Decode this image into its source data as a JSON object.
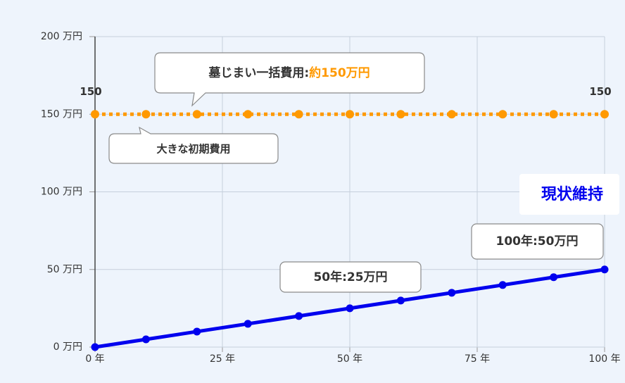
{
  "chart_data": {
    "type": "line",
    "x": [
      0,
      10,
      20,
      30,
      40,
      50,
      60,
      70,
      80,
      90,
      100
    ],
    "xlim": [
      0,
      100
    ],
    "xticks": [
      {
        "value": 0,
        "label": "0 年"
      },
      {
        "value": 25,
        "label": "25 年"
      },
      {
        "value": 50,
        "label": "50 年"
      },
      {
        "value": 75,
        "label": "75 年"
      },
      {
        "value": 100,
        "label": "100 年"
      }
    ],
    "ylim": [
      0,
      200
    ],
    "yticks": [
      {
        "value": 0,
        "label": "0 万円"
      },
      {
        "value": 50,
        "label": "50 万円"
      },
      {
        "value": 100,
        "label": "100 万円"
      },
      {
        "value": 150,
        "label": "150 万円"
      },
      {
        "value": 200,
        "label": "200 万円"
      }
    ],
    "grid": true,
    "series": [
      {
        "name": "大きな初期費用",
        "color": "#ff9900",
        "line_style": "dotted",
        "values": [
          150,
          150,
          150,
          150,
          150,
          150,
          150,
          150,
          150,
          150,
          150
        ],
        "value_labels": [
          "150",
          null,
          null,
          null,
          null,
          null,
          null,
          null,
          null,
          null,
          "150"
        ]
      },
      {
        "name": "現状維持",
        "color": "#0000ee",
        "line_style": "solid",
        "values": [
          0,
          5,
          10,
          15,
          20,
          25,
          30,
          35,
          40,
          45,
          50
        ]
      }
    ],
    "annotations": [
      "墓じまい一括費用:",
      "約150万円",
      "50年:25万円",
      "100年:50万円"
    ]
  }
}
